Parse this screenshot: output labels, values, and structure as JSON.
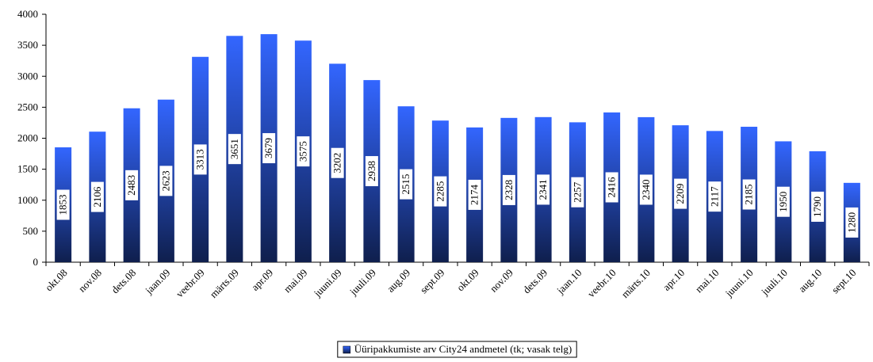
{
  "chart_data": {
    "type": "bar",
    "categories": [
      "okt.08",
      "nov.08",
      "dets.08",
      "jaan.09",
      "veebr.09",
      "märts.09",
      "apr.09",
      "mai.09",
      "juuni.09",
      "juuli.09",
      "aug.09",
      "sept.09",
      "okt.09",
      "nov.09",
      "dets.09",
      "jaan.10",
      "veebr.10",
      "märts.10",
      "apr.10",
      "mai.10",
      "juuni.10",
      "juuli.10",
      "aug.10",
      "sept.10"
    ],
    "values": [
      1853,
      2106,
      2483,
      2623,
      3313,
      3651,
      3679,
      3575,
      3202,
      2938,
      2515,
      2285,
      2174,
      2328,
      2341,
      2257,
      2416,
      2340,
      2209,
      2117,
      2185,
      1950,
      1790,
      1280
    ],
    "series_name": "Üüripakkumiste arv City24 andmetel (tk; vasak telg)",
    "color": "#3366ff",
    "ylim": [
      0,
      4000
    ],
    "yticks": [
      0,
      500,
      1000,
      1500,
      2000,
      2500,
      3000,
      3500,
      4000
    ],
    "grid": false,
    "legend": "bottom"
  }
}
